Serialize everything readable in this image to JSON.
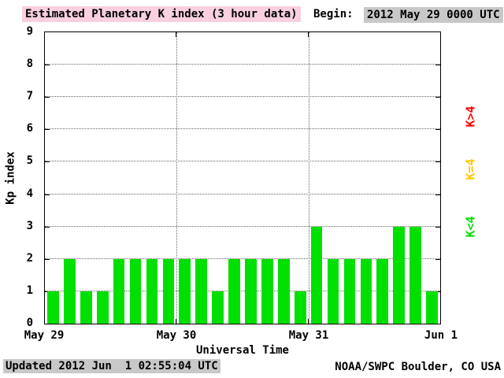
{
  "header": {
    "title": "Estimated Planetary K index (3 hour data)",
    "begin_label": "Begin:",
    "begin_value": "2012 May 29 0000 UTC"
  },
  "footer": {
    "updated": "Updated 2012 Jun  1 02:55:04 UTC",
    "source": "NOAA/SWPC Boulder, CO USA"
  },
  "colors": {
    "title_highlight": "#F8D0E0",
    "timestamp_highlight": "#C8C8C8",
    "bar_low": "#00E000",
    "bar_mid": "#FFC800",
    "bar_high": "#FF0000"
  },
  "chart_data": {
    "type": "bar",
    "title": "Estimated Planetary K index (3 hour data)",
    "xlabel": "Universal Time",
    "ylabel": "Kp index",
    "ylim": [
      0,
      9
    ],
    "y_ticks": [
      0,
      1,
      2,
      3,
      4,
      5,
      6,
      7,
      8,
      9
    ],
    "x_tick_labels": [
      "May 29",
      "May 30",
      "May 31",
      "Jun 1"
    ],
    "bar_interval_hours": 3,
    "hours_span": 72,
    "grid": "dotted",
    "values": [
      1,
      2,
      1,
      1,
      2,
      2,
      2,
      2,
      2,
      2,
      1,
      2,
      2,
      2,
      2,
      1,
      3,
      2,
      2,
      2,
      2,
      3,
      3,
      1
    ],
    "thresholds": {
      "low_below": 4,
      "mid_equals": 4
    },
    "legend": [
      {
        "label": "K>4",
        "color": "#FF0000"
      },
      {
        "label": "K=4",
        "color": "#FFC800"
      },
      {
        "label": "K<4",
        "color": "#00E000"
      }
    ],
    "legend_position": "right-rotated"
  }
}
